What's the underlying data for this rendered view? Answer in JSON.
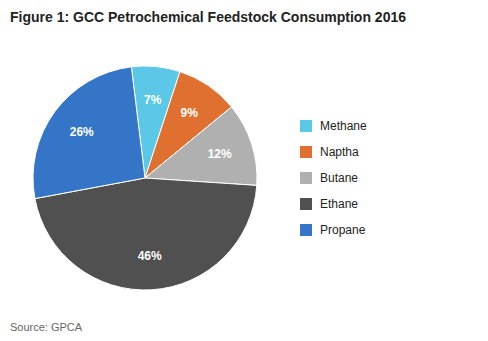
{
  "chart_data": {
    "type": "pie",
    "title": "Figure 1: GCC Petrochemical Feedstock Consumption 2016",
    "annotations": [
      "Source: GPCA"
    ],
    "categories": [
      "Methane",
      "Naptha",
      "Butane",
      "Ethane",
      "Propane"
    ],
    "values": [
      7,
      9,
      12,
      46,
      26
    ],
    "value_labels": [
      "7%",
      "9%",
      "12%",
      "46%",
      "26%"
    ],
    "colors": [
      "#5bc8e8",
      "#e07030",
      "#b0b0b0",
      "#505050",
      "#3575c8"
    ],
    "data_labels": true,
    "legend": "right"
  }
}
